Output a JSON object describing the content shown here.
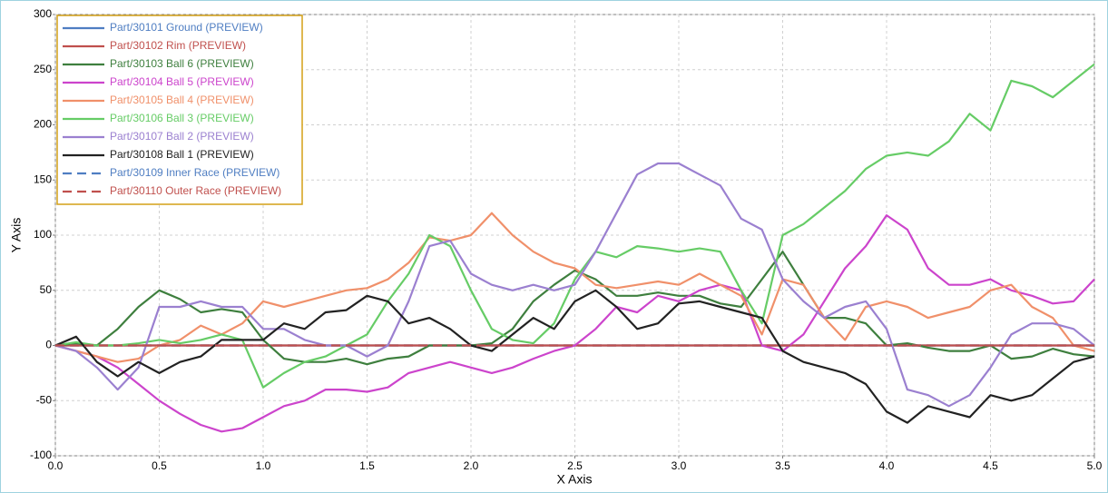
{
  "chart_data": {
    "type": "line",
    "x_label": "X Axis",
    "y_label": "Y Axis",
    "x": [
      0,
      0.1,
      0.2,
      0.3,
      0.4,
      0.5,
      0.6,
      0.7,
      0.8,
      0.9,
      1.0,
      1.1,
      1.2,
      1.3,
      1.4,
      1.5,
      1.6,
      1.7,
      1.8,
      1.9,
      2.0,
      2.1,
      2.2,
      2.3,
      2.4,
      2.5,
      2.6,
      2.7,
      2.8,
      2.9,
      3.0,
      3.1,
      3.2,
      3.3,
      3.4,
      3.5,
      3.6,
      3.7,
      3.8,
      3.9,
      4.0,
      4.1,
      4.2,
      4.3,
      4.4,
      4.5,
      4.6,
      4.7,
      4.8,
      4.9,
      5.0
    ],
    "xlim": [
      0,
      5
    ],
    "ylim": [
      -100,
      300
    ],
    "xticks": [
      {
        "value": 0,
        "label": "0.0"
      },
      {
        "value": 0.5,
        "label": "0.5"
      },
      {
        "value": 1,
        "label": "1.0"
      },
      {
        "value": 1.5,
        "label": "1.5"
      },
      {
        "value": 2,
        "label": "2.0"
      },
      {
        "value": 2.5,
        "label": "2.5"
      },
      {
        "value": 3,
        "label": "3.0"
      },
      {
        "value": 3.5,
        "label": "3.5"
      },
      {
        "value": 4,
        "label": "4.0"
      },
      {
        "value": 4.5,
        "label": "4.5"
      },
      {
        "value": 5,
        "label": "5.0"
      }
    ],
    "yticks": [
      -100,
      -50,
      0,
      50,
      100,
      150,
      200,
      250,
      300
    ],
    "grid": true,
    "legend": "upper left",
    "series": [
      {
        "name": "Part/30101 Ground (PREVIEW)",
        "color": "#4f7ec2",
        "dashed": false,
        "values": [
          0,
          0,
          0,
          0,
          0,
          0,
          0,
          0,
          0,
          0,
          0,
          0,
          0,
          0,
          0,
          0,
          0,
          0,
          0,
          0,
          0,
          0,
          0,
          0,
          0,
          0,
          0,
          0,
          0,
          0,
          0,
          0,
          0,
          0,
          0,
          0,
          0,
          0,
          0,
          0,
          0,
          0,
          0,
          0,
          0,
          0,
          0,
          0,
          0,
          0,
          0
        ]
      },
      {
        "name": "Part/30102 Rim (PREVIEW)",
        "color": "#c0504d",
        "dashed": false,
        "values": [
          0,
          0,
          0,
          0,
          0,
          0,
          0,
          0,
          0,
          0,
          0,
          0,
          0,
          0,
          0,
          0,
          0,
          0,
          0,
          0,
          0,
          0,
          0,
          0,
          0,
          0,
          0,
          0,
          0,
          0,
          0,
          0,
          0,
          0,
          0,
          0,
          0,
          0,
          0,
          0,
          0,
          0,
          0,
          0,
          0,
          0,
          0,
          0,
          0,
          0,
          0
        ]
      },
      {
        "name": "Part/30103 Ball 6 (PREVIEW)",
        "color": "#3e7f3e",
        "dashed": false,
        "values": [
          0,
          2,
          0,
          15,
          35,
          50,
          42,
          30,
          33,
          30,
          5,
          -12,
          -15,
          -15,
          -12,
          -17,
          -12,
          -10,
          0,
          0,
          0,
          2,
          15,
          40,
          55,
          68,
          60,
          45,
          45,
          48,
          45,
          45,
          38,
          35,
          60,
          85,
          55,
          25,
          25,
          20,
          0,
          2,
          -2,
          -5,
          -5,
          0,
          -12,
          -10,
          -3,
          -8,
          -10
        ]
      },
      {
        "name": "Part/30104 Ball 5 (PREVIEW)",
        "color": "#cc44cc",
        "dashed": false,
        "values": [
          0,
          -5,
          -10,
          -20,
          -35,
          -50,
          -62,
          -72,
          -78,
          -75,
          -65,
          -55,
          -50,
          -40,
          -40,
          -42,
          -38,
          -25,
          -20,
          -15,
          -20,
          -25,
          -20,
          -12,
          -5,
          0,
          15,
          35,
          30,
          45,
          40,
          50,
          55,
          50,
          0,
          -5,
          10,
          40,
          70,
          90,
          118,
          105,
          70,
          55,
          55,
          60,
          50,
          45,
          38,
          40,
          60
        ]
      },
      {
        "name": "Part/30105 Ball 4 (PREVIEW)",
        "color": "#f0906a",
        "dashed": false,
        "values": [
          0,
          -5,
          -10,
          -15,
          -12,
          0,
          5,
          18,
          10,
          20,
          40,
          35,
          40,
          45,
          50,
          52,
          60,
          75,
          98,
          95,
          100,
          120,
          100,
          85,
          75,
          70,
          55,
          52,
          55,
          58,
          55,
          65,
          55,
          45,
          10,
          60,
          55,
          25,
          5,
          35,
          40,
          35,
          25,
          30,
          35,
          50,
          55,
          35,
          25,
          0,
          -5
        ]
      },
      {
        "name": "Part/30106 Ball 3 (PREVIEW)",
        "color": "#66cc66",
        "dashed": false,
        "values": [
          0,
          3,
          0,
          0,
          2,
          5,
          2,
          5,
          10,
          5,
          -38,
          -25,
          -15,
          -10,
          0,
          10,
          40,
          65,
          100,
          90,
          50,
          15,
          5,
          2,
          20,
          60,
          85,
          80,
          90,
          88,
          85,
          88,
          85,
          50,
          20,
          100,
          110,
          125,
          140,
          160,
          172,
          175,
          172,
          185,
          210,
          195,
          240,
          235,
          225,
          240,
          255
        ]
      },
      {
        "name": "Part/30107 Ball 2 (PREVIEW)",
        "color": "#9b80d0",
        "dashed": false,
        "values": [
          0,
          -5,
          -20,
          -40,
          -20,
          35,
          35,
          40,
          35,
          35,
          15,
          15,
          5,
          0,
          0,
          -10,
          0,
          40,
          90,
          95,
          65,
          55,
          50,
          55,
          50,
          55,
          85,
          120,
          155,
          165,
          165,
          155,
          145,
          115,
          105,
          60,
          40,
          25,
          35,
          40,
          15,
          -40,
          -45,
          -55,
          -45,
          -20,
          10,
          20,
          20,
          15,
          0
        ]
      },
      {
        "name": "Part/30108 Ball 1 (PREVIEW)",
        "color": "#222222",
        "dashed": false,
        "values": [
          0,
          8,
          -15,
          -28,
          -15,
          -25,
          -15,
          -10,
          5,
          5,
          5,
          20,
          15,
          30,
          32,
          45,
          40,
          20,
          25,
          15,
          0,
          -5,
          10,
          25,
          15,
          40,
          50,
          35,
          15,
          20,
          38,
          40,
          35,
          30,
          25,
          -5,
          -15,
          -20,
          -25,
          -35,
          -60,
          -70,
          -55,
          -60,
          -65,
          -45,
          -50,
          -45,
          -30,
          -15,
          -10
        ]
      },
      {
        "name": "Part/30109 Inner Race (PREVIEW)",
        "color": "#4f7ec2",
        "dashed": true,
        "values": [
          0,
          0,
          0,
          0,
          0,
          0,
          0,
          0,
          0,
          0,
          0,
          0,
          0,
          0,
          0,
          0,
          0,
          0,
          0,
          0,
          0,
          0,
          0,
          0,
          0,
          0,
          0,
          0,
          0,
          0,
          0,
          0,
          0,
          0,
          0,
          0,
          0,
          0,
          0,
          0,
          0,
          0,
          0,
          0,
          0,
          0,
          0,
          0,
          0,
          0,
          0
        ]
      },
      {
        "name": "Part/30110 Outer Race (PREVIEW)",
        "color": "#c0504d",
        "dashed": true,
        "values": [
          0,
          0,
          0,
          0,
          0,
          0,
          0,
          0,
          0,
          0,
          0,
          0,
          0,
          0,
          0,
          0,
          0,
          0,
          0,
          0,
          0,
          0,
          0,
          0,
          0,
          0,
          0,
          0,
          0,
          0,
          0,
          0,
          0,
          0,
          0,
          0,
          0,
          0,
          0,
          0,
          0,
          0,
          0,
          0,
          0,
          0,
          0,
          0,
          0,
          0,
          0
        ]
      }
    ]
  }
}
